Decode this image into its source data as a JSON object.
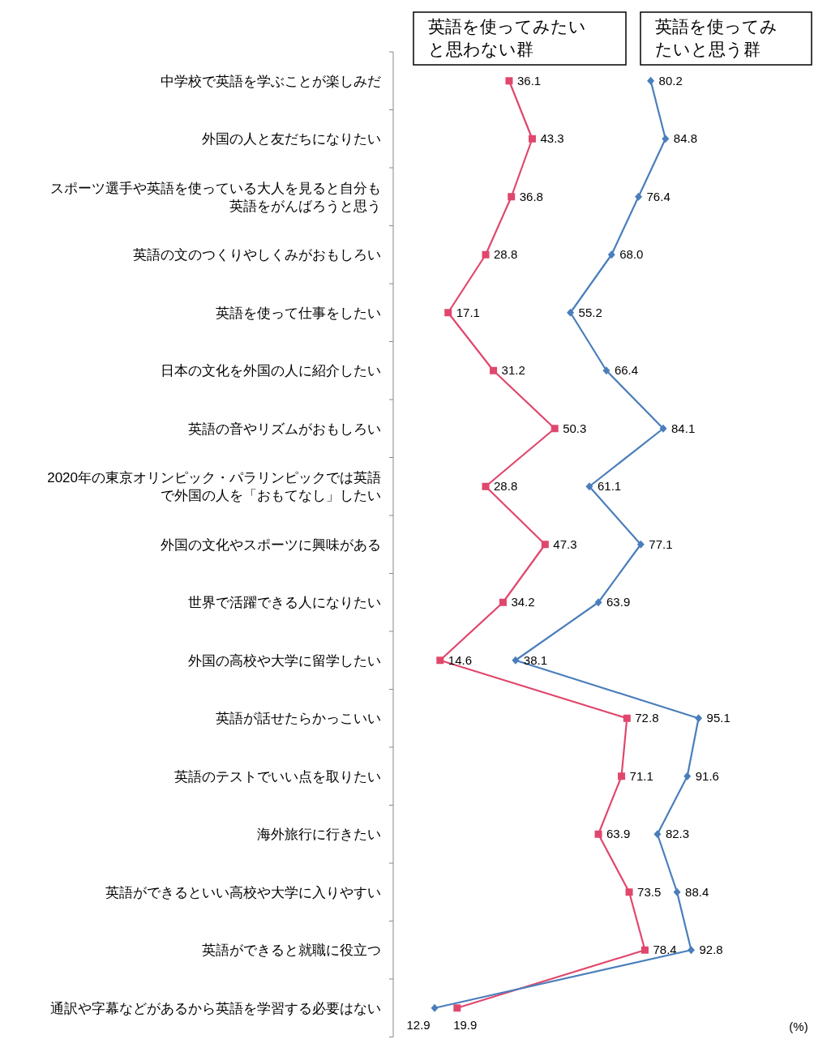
{
  "chart_data": {
    "type": "line",
    "orientation": "horizontal",
    "annotations": [
      "(%)"
    ],
    "legend": "top",
    "tick_labels": "y",
    "categories": [
      "中学校で英語を学ぶことが楽しみだ",
      "外国の人と友だちになりたい",
      "スポーツ選手や英語を使っている大人を見ると自分も英語をがんばろうと思う",
      "英語の文のつくりやしくみがおもしろい",
      "英語を使って仕事をしたい",
      "日本の文化を外国の人に紹介したい",
      "英語の音やリズムがおもしろい",
      "2020年の東京オリンピック・パラリンピックでは英語で外国の人を「おもてなし」したい",
      "外国の文化やスポーツに興味がある",
      "世界で活躍できる人になりたい",
      "外国の高校や大学に留学したい",
      "英語が話せたらかっこいい",
      "英語のテストでいい点を取りたい",
      "海外旅行に行きたい",
      "英語ができるといい高校や大学に入りやすい",
      "英語ができると就職に役立つ",
      "通訳や字幕などがあるから英語を学習する必要はない"
    ],
    "series": [
      {
        "name": "英語を使ってみたいと思わない群",
        "color": "#e0476d",
        "marker": "square",
        "values": [
          36.1,
          43.3,
          36.8,
          28.8,
          17.1,
          31.2,
          50.3,
          28.8,
          47.3,
          34.2,
          14.6,
          72.8,
          71.1,
          63.9,
          73.5,
          78.4,
          19.9
        ],
        "value_labels": [
          "36.1",
          "43.3",
          "36.8",
          "28.8",
          "17.1",
          "31.2",
          "50.3",
          "28.8",
          "47.3",
          "34.2",
          "14.6",
          "72.8",
          "71.1",
          "63.9",
          "73.5",
          "78.4",
          "19.9"
        ]
      },
      {
        "name": "英語を使ってみたいと思う群",
        "color": "#4a7ebb",
        "marker": "diamond",
        "values": [
          80.2,
          84.8,
          76.4,
          68.0,
          55.2,
          66.4,
          84.1,
          61.1,
          77.1,
          63.9,
          38.1,
          95.1,
          91.6,
          82.3,
          88.4,
          92.8,
          12.9
        ],
        "value_labels": [
          "80.2",
          "84.8",
          "76.4",
          "68.0",
          "55.2",
          "66.4",
          "84.1",
          "61.1",
          "77.1",
          "63.9",
          "38.1",
          "95.1",
          "91.6",
          "82.3",
          "88.4",
          "92.8",
          "12.9"
        ]
      }
    ]
  }
}
